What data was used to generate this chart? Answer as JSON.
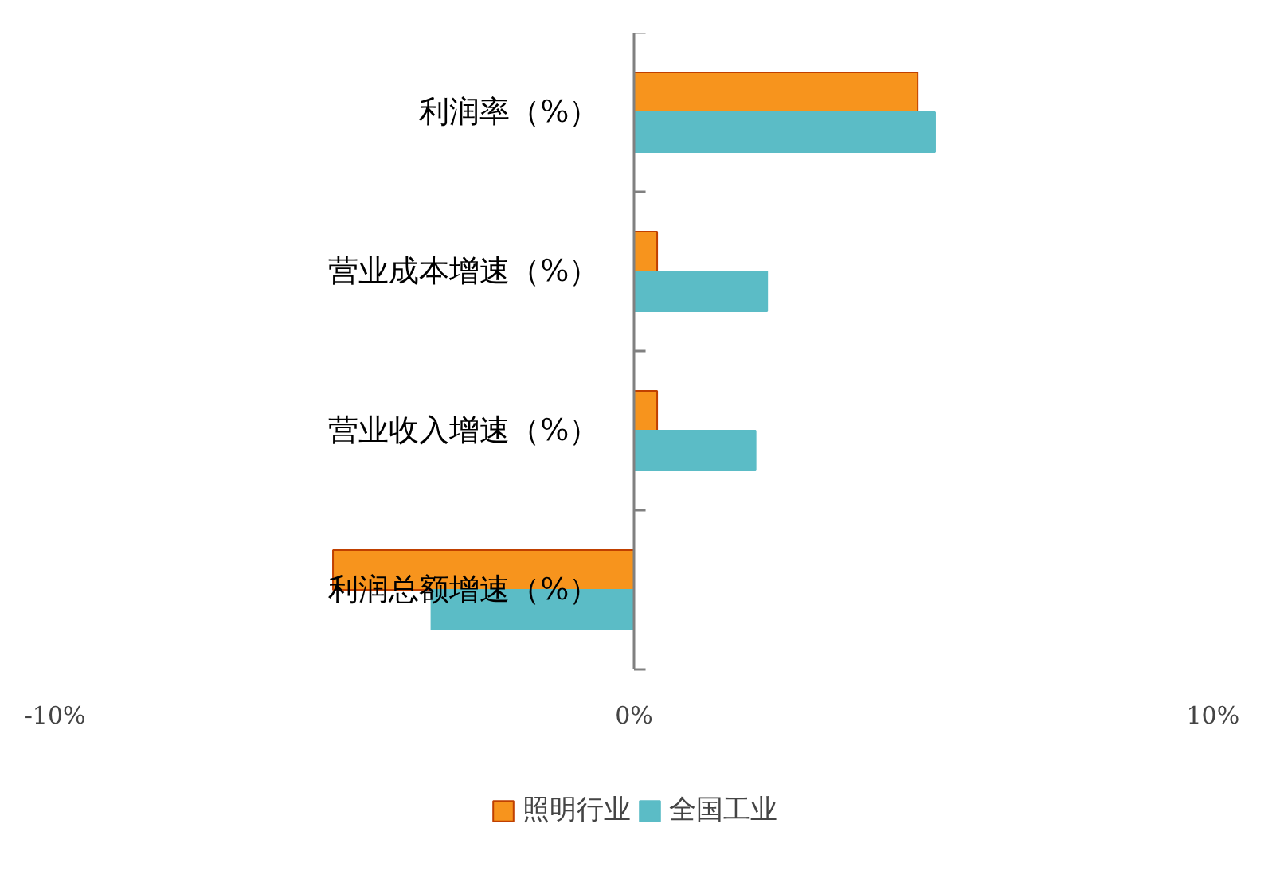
{
  "chart_data": {
    "type": "bar",
    "orientation": "horizontal",
    "categories": [
      "利润率（%）",
      "营业成本增速（%）",
      "营业收入增速（%）",
      "利润总额增速（%）"
    ],
    "series": [
      {
        "name": "照明行业",
        "color": "#f7941d",
        "values": [
          4.9,
          0.4,
          0.4,
          -5.2
        ]
      },
      {
        "name": "全国工业",
        "color": "#5bbcc6",
        "values": [
          5.2,
          2.3,
          2.1,
          -3.5
        ]
      }
    ],
    "xlim": [
      -10,
      10
    ],
    "xticks": [
      {
        "value": -10,
        "label": "-10%"
      },
      {
        "value": 0,
        "label": "0%"
      },
      {
        "value": 10,
        "label": "10%"
      }
    ],
    "grid": false,
    "legend": "bottom"
  }
}
